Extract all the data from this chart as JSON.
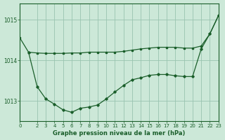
{
  "background_color": "#cce8d8",
  "grid_color": "#99c4b0",
  "line_color": "#1a5e2a",
  "text_color": "#1a5e2a",
  "xlabel": "Graphe pression niveau de la mer (hPa)",
  "ylim": [
    1012.5,
    1015.4
  ],
  "xlim": [
    0,
    23
  ],
  "yticks": [
    1013,
    1014,
    1015
  ],
  "xticks": [
    0,
    2,
    3,
    4,
    5,
    6,
    7,
    8,
    9,
    10,
    11,
    12,
    13,
    14,
    15,
    16,
    17,
    18,
    19,
    20,
    21,
    22,
    23
  ],
  "line1_x": [
    0,
    1,
    2,
    3,
    4,
    5,
    6,
    7,
    8,
    9,
    10,
    11,
    12,
    13,
    14,
    15,
    16,
    17,
    18,
    19,
    20,
    21,
    22,
    23
  ],
  "line1_y": [
    1014.55,
    1014.2,
    1014.18,
    1014.17,
    1014.17,
    1014.17,
    1014.18,
    1014.18,
    1014.2,
    1014.2,
    1014.2,
    1014.2,
    1014.22,
    1014.25,
    1014.28,
    1014.3,
    1014.32,
    1014.32,
    1014.32,
    1014.3,
    1014.3,
    1014.35,
    1014.65,
    1015.1
  ],
  "line2_x": [
    1,
    2,
    3,
    4,
    5,
    6,
    7,
    8,
    9,
    10,
    11,
    12,
    13,
    14,
    15,
    16,
    17,
    18,
    19,
    20,
    21,
    22,
    23
  ],
  "line2_y": [
    1014.2,
    1013.35,
    1013.05,
    1012.92,
    1012.78,
    1012.72,
    1012.82,
    1012.85,
    1012.9,
    1013.05,
    1013.22,
    1013.38,
    1013.52,
    1013.57,
    1013.63,
    1013.65,
    1013.65,
    1013.62,
    1013.6,
    1013.6,
    1014.28,
    1014.65,
    1015.1
  ]
}
